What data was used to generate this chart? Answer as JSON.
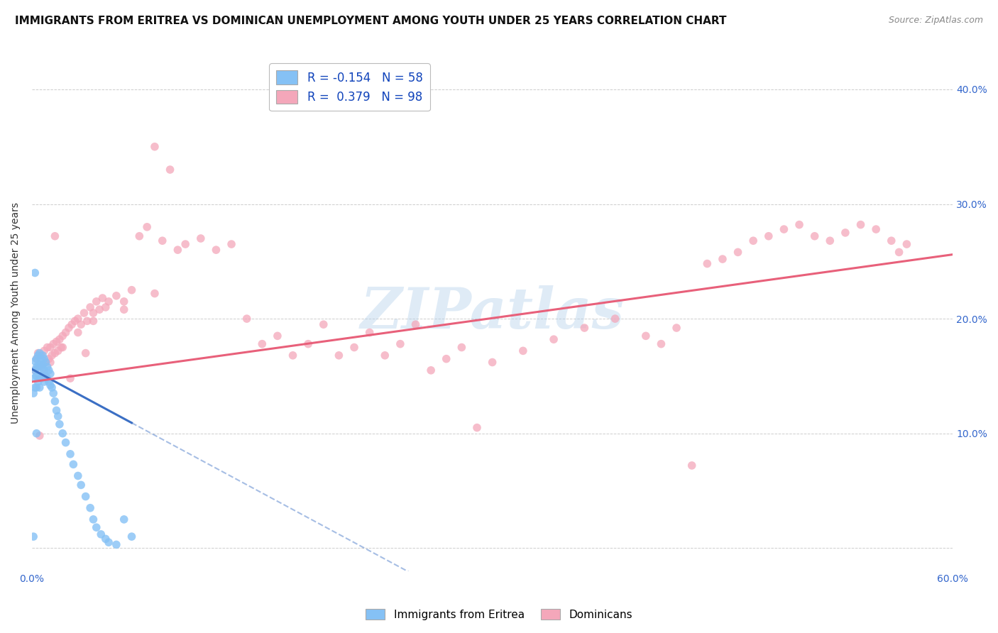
{
  "title": "IMMIGRANTS FROM ERITREA VS DOMINICAN UNEMPLOYMENT AMONG YOUTH UNDER 25 YEARS CORRELATION CHART",
  "source": "Source: ZipAtlas.com",
  "ylabel": "Unemployment Among Youth under 25 years",
  "xlim": [
    0.0,
    0.6
  ],
  "ylim": [
    -0.02,
    0.43
  ],
  "xtick_positions": [
    0.0,
    0.1,
    0.2,
    0.3,
    0.4,
    0.5,
    0.6
  ],
  "xtick_labels": [
    "0.0%",
    "",
    "",
    "",
    "",
    "",
    "60.0%"
  ],
  "ytick_right_vals": [
    0.1,
    0.2,
    0.3,
    0.4
  ],
  "ytick_right_labels": [
    "10.0%",
    "20.0%",
    "30.0%",
    "40.0%"
  ],
  "watermark": "ZIPatlas",
  "legend_r1": "R = -0.154",
  "legend_n1": "N = 58",
  "legend_r2": "R =  0.379",
  "legend_n2": "N = 98",
  "blue_color": "#85C1F5",
  "pink_color": "#F4A7BA",
  "blue_line_color": "#3B6FC4",
  "pink_line_color": "#E8607A",
  "background_color": "#FFFFFF",
  "grid_color": "#C8C8C8",
  "title_fontsize": 11,
  "axis_label_fontsize": 10,
  "tick_fontsize": 10,
  "blue_scatter_x": [
    0.001,
    0.001,
    0.002,
    0.002,
    0.002,
    0.003,
    0.003,
    0.003,
    0.003,
    0.004,
    0.004,
    0.004,
    0.005,
    0.005,
    0.005,
    0.005,
    0.006,
    0.006,
    0.006,
    0.007,
    0.007,
    0.007,
    0.008,
    0.008,
    0.008,
    0.009,
    0.009,
    0.01,
    0.01,
    0.011,
    0.011,
    0.012,
    0.012,
    0.013,
    0.014,
    0.015,
    0.016,
    0.017,
    0.018,
    0.02,
    0.022,
    0.025,
    0.027,
    0.03,
    0.032,
    0.035,
    0.038,
    0.04,
    0.042,
    0.045,
    0.048,
    0.05,
    0.055,
    0.06,
    0.065,
    0.002,
    0.003,
    0.001
  ],
  "blue_scatter_y": [
    0.135,
    0.148,
    0.14,
    0.155,
    0.163,
    0.14,
    0.15,
    0.158,
    0.165,
    0.145,
    0.158,
    0.168,
    0.14,
    0.15,
    0.16,
    0.17,
    0.148,
    0.158,
    0.165,
    0.152,
    0.16,
    0.168,
    0.145,
    0.155,
    0.165,
    0.15,
    0.162,
    0.148,
    0.158,
    0.145,
    0.155,
    0.142,
    0.152,
    0.14,
    0.135,
    0.128,
    0.12,
    0.115,
    0.108,
    0.1,
    0.092,
    0.082,
    0.073,
    0.063,
    0.055,
    0.045,
    0.035,
    0.025,
    0.018,
    0.012,
    0.008,
    0.005,
    0.003,
    0.025,
    0.01,
    0.24,
    0.1,
    0.01
  ],
  "pink_scatter_x": [
    0.002,
    0.003,
    0.004,
    0.005,
    0.006,
    0.007,
    0.008,
    0.009,
    0.01,
    0.011,
    0.012,
    0.013,
    0.014,
    0.015,
    0.016,
    0.017,
    0.018,
    0.019,
    0.02,
    0.022,
    0.024,
    0.026,
    0.028,
    0.03,
    0.032,
    0.034,
    0.036,
    0.038,
    0.04,
    0.042,
    0.044,
    0.046,
    0.048,
    0.05,
    0.055,
    0.06,
    0.065,
    0.07,
    0.075,
    0.08,
    0.085,
    0.09,
    0.095,
    0.1,
    0.11,
    0.12,
    0.13,
    0.14,
    0.15,
    0.16,
    0.17,
    0.18,
    0.19,
    0.2,
    0.21,
    0.22,
    0.23,
    0.24,
    0.25,
    0.26,
    0.27,
    0.28,
    0.29,
    0.3,
    0.32,
    0.34,
    0.36,
    0.38,
    0.4,
    0.41,
    0.42,
    0.43,
    0.44,
    0.45,
    0.46,
    0.47,
    0.48,
    0.49,
    0.5,
    0.51,
    0.52,
    0.53,
    0.54,
    0.55,
    0.56,
    0.565,
    0.57,
    0.015,
    0.025,
    0.035,
    0.005,
    0.008,
    0.012,
    0.02,
    0.03,
    0.04,
    0.06,
    0.08
  ],
  "pink_scatter_y": [
    0.155,
    0.165,
    0.17,
    0.158,
    0.168,
    0.16,
    0.172,
    0.162,
    0.175,
    0.165,
    0.175,
    0.168,
    0.178,
    0.17,
    0.18,
    0.172,
    0.182,
    0.175,
    0.185,
    0.188,
    0.192,
    0.195,
    0.198,
    0.2,
    0.195,
    0.205,
    0.198,
    0.21,
    0.205,
    0.215,
    0.208,
    0.218,
    0.21,
    0.215,
    0.22,
    0.215,
    0.225,
    0.272,
    0.28,
    0.35,
    0.268,
    0.33,
    0.26,
    0.265,
    0.27,
    0.26,
    0.265,
    0.2,
    0.178,
    0.185,
    0.168,
    0.178,
    0.195,
    0.168,
    0.175,
    0.188,
    0.168,
    0.178,
    0.195,
    0.155,
    0.165,
    0.175,
    0.105,
    0.162,
    0.172,
    0.182,
    0.192,
    0.2,
    0.185,
    0.178,
    0.192,
    0.072,
    0.248,
    0.252,
    0.258,
    0.268,
    0.272,
    0.278,
    0.282,
    0.272,
    0.268,
    0.275,
    0.282,
    0.278,
    0.268,
    0.258,
    0.265,
    0.272,
    0.148,
    0.17,
    0.098,
    0.152,
    0.162,
    0.175,
    0.188,
    0.198,
    0.208,
    0.222
  ]
}
